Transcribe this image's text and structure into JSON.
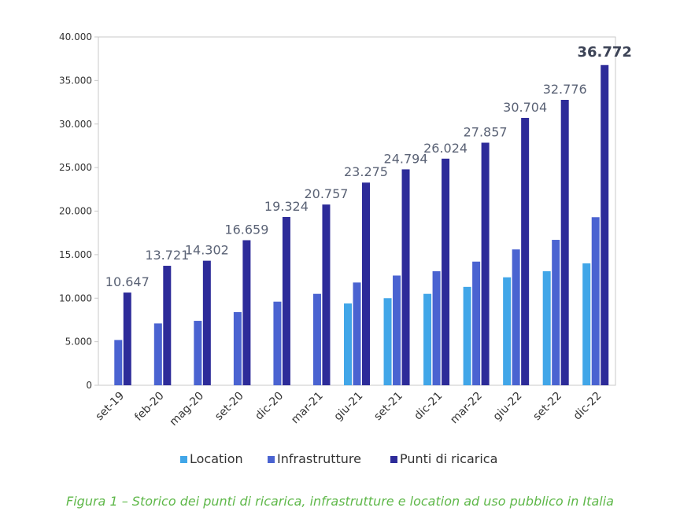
{
  "chart_data": {
    "type": "bar",
    "categories": [
      "set-19",
      "feb-20",
      "mag-20",
      "set-20",
      "dic-20",
      "mar-21",
      "giu-21",
      "set-21",
      "dic-21",
      "mar-22",
      "giu-22",
      "set-22",
      "dic-22"
    ],
    "series": [
      {
        "name": "Location",
        "color": "#41a6e8",
        "values": [
          null,
          null,
          null,
          null,
          null,
          null,
          9400,
          10000,
          10500,
          11300,
          12400,
          13100,
          14000
        ]
      },
      {
        "name": "Infrastrutture",
        "color": "#4a63d1",
        "values": [
          5200,
          7100,
          7400,
          8400,
          9600,
          10500,
          11800,
          12600,
          13100,
          14200,
          15600,
          16700,
          19300
        ]
      },
      {
        "name": "Punti di ricarica",
        "color": "#2d2b99",
        "values": [
          10647,
          13721,
          14302,
          16659,
          19324,
          20757,
          23275,
          24794,
          26024,
          27857,
          30704,
          32776,
          36772
        ]
      }
    ],
    "data_labels": [
      "10.647",
      "13.721",
      "14.302",
      "16.659",
      "19.324",
      "20.757",
      "23.275",
      "24.794",
      "26.024",
      "27.857",
      "30.704",
      "32.776",
      "36.772"
    ],
    "highlight_label_index": 12,
    "ylim": [
      0,
      40000
    ],
    "yticks": [
      0,
      5000,
      10000,
      15000,
      20000,
      25000,
      30000,
      35000,
      40000
    ],
    "ytick_labels": [
      "0",
      "5.000",
      "10.000",
      "15.000",
      "20.000",
      "25.000",
      "30.000",
      "35.000",
      "40.000"
    ],
    "grid": false,
    "legend_position": "bottom",
    "xlabel": "",
    "ylabel": "",
    "title": ""
  },
  "caption": "Figura 1 – Storico dei punti di ricarica, infrastrutture e location ad uso pubblico in Italia"
}
